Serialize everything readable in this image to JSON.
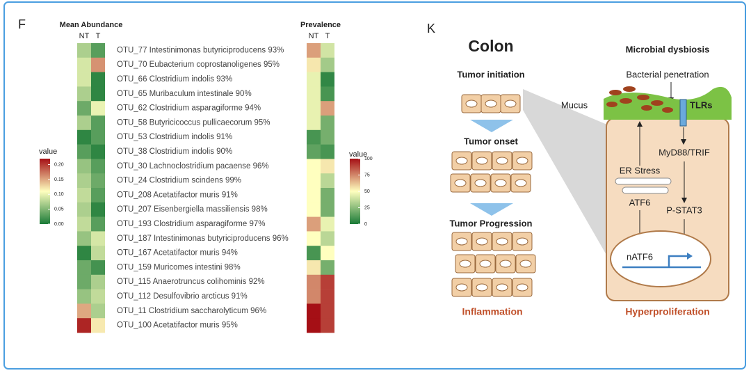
{
  "chart_data": [
    {
      "type": "heatmap",
      "panel": "F",
      "title": "Mean Abundance",
      "categories": [
        "OTU_77 Intestinimonas butyriciproducens 93%",
        "OTU_70 Eubacterium coprostanoligenes 95%",
        "OTU_66 Clostridium indolis 93%",
        "OTU_65 Muribaculum intestinale 90%",
        "OTU_62 Clostridium asparagiforme 94%",
        "OTU_58 Butyricicoccus pullicaecorum 95%",
        "OTU_53 Clostridium indolis 91%",
        "OTU_38 Clostridium indolis 90%",
        "OTU_30 Lachnoclostridium pacaense 96%",
        "OTU_24 Clostridium scindens 99%",
        "OTU_208 Acetatifactor muris 91%",
        "OTU_207 Eisenbergiella massiliensis 98%",
        "OTU_193 Clostridium asparagiforme 97%",
        "OTU_187 Intestinimonas butyriciproducens  96%",
        "OTU_167 Acetatifactor muris 94%",
        "OTU_159 Muricomes intestini 98%",
        "OTU_115 Anaerotruncus colihominis 92%",
        "OTU_112 Desulfovibrio arcticus 91%",
        "OTU_11 Clostridium saccharolyticum 96%",
        "OTU_100 Acetatifactor muris 95%"
      ],
      "series": [
        {
          "name": "NT",
          "values": [
            0.07,
            0.09,
            0.09,
            0.07,
            0.04,
            0.07,
            0.01,
            0.03,
            0.06,
            0.07,
            0.08,
            0.07,
            0.08,
            0.06,
            0.01,
            0.04,
            0.04,
            0.06,
            0.15,
            0.21
          ]
        },
        {
          "name": "T",
          "values": [
            0.03,
            0.16,
            0.01,
            0.01,
            0.1,
            0.03,
            0.03,
            0.01,
            0.03,
            0.04,
            0.03,
            0.01,
            0.03,
            0.09,
            0.08,
            0.02,
            0.07,
            0.08,
            0.07,
            0.12
          ]
        }
      ],
      "legend_title": "value",
      "zlim": [
        0,
        0.22
      ],
      "zticks": [
        {
          "value": 0,
          "label": "0.00"
        },
        {
          "value": 0.05,
          "label": "0.05"
        },
        {
          "value": 0.1,
          "label": "0.10"
        },
        {
          "value": 0.15,
          "label": "0.15"
        },
        {
          "value": 0.2,
          "label": "0.20"
        }
      ],
      "colors": [
        "#1a7a37",
        "#ffffbf",
        "#a50f15"
      ]
    },
    {
      "type": "heatmap",
      "title": "Prevalence",
      "series": [
        {
          "name": "NT",
          "values": [
            70,
            55,
            45,
            45,
            45,
            45,
            10,
            15,
            50,
            50,
            50,
            50,
            70,
            50,
            10,
            55,
            75,
            75,
            100,
            100
          ]
        },
        {
          "name": "T",
          "values": [
            40,
            30,
            5,
            10,
            70,
            20,
            20,
            10,
            55,
            35,
            20,
            20,
            45,
            35,
            50,
            20,
            90,
            90,
            90,
            90
          ]
        }
      ],
      "legend_title": "value",
      "zlim": [
        0,
        100
      ],
      "zticks": [
        0,
        25,
        50,
        75,
        100
      ],
      "colors": [
        "#1a7a37",
        "#ffffbf",
        "#a50f15"
      ]
    }
  ],
  "diagram": {
    "panel": "K",
    "title": "Colon",
    "stages": [
      "Tumor initiation",
      "Tumor onset",
      "Tumor Progression"
    ],
    "left_footer": "Inflammation",
    "cell_title": "Microbial dysbiosis",
    "penetration": "Bacterial penetration",
    "mucus": "Mucus",
    "tlrs": "TLRs",
    "myd88": "MyD88/TRIF",
    "er_stress": "ER Stress",
    "atf6": "ATF6",
    "pstat3": "P-STAT3",
    "natf6": "nATF6",
    "right_footer": "Hyperproliferation"
  }
}
